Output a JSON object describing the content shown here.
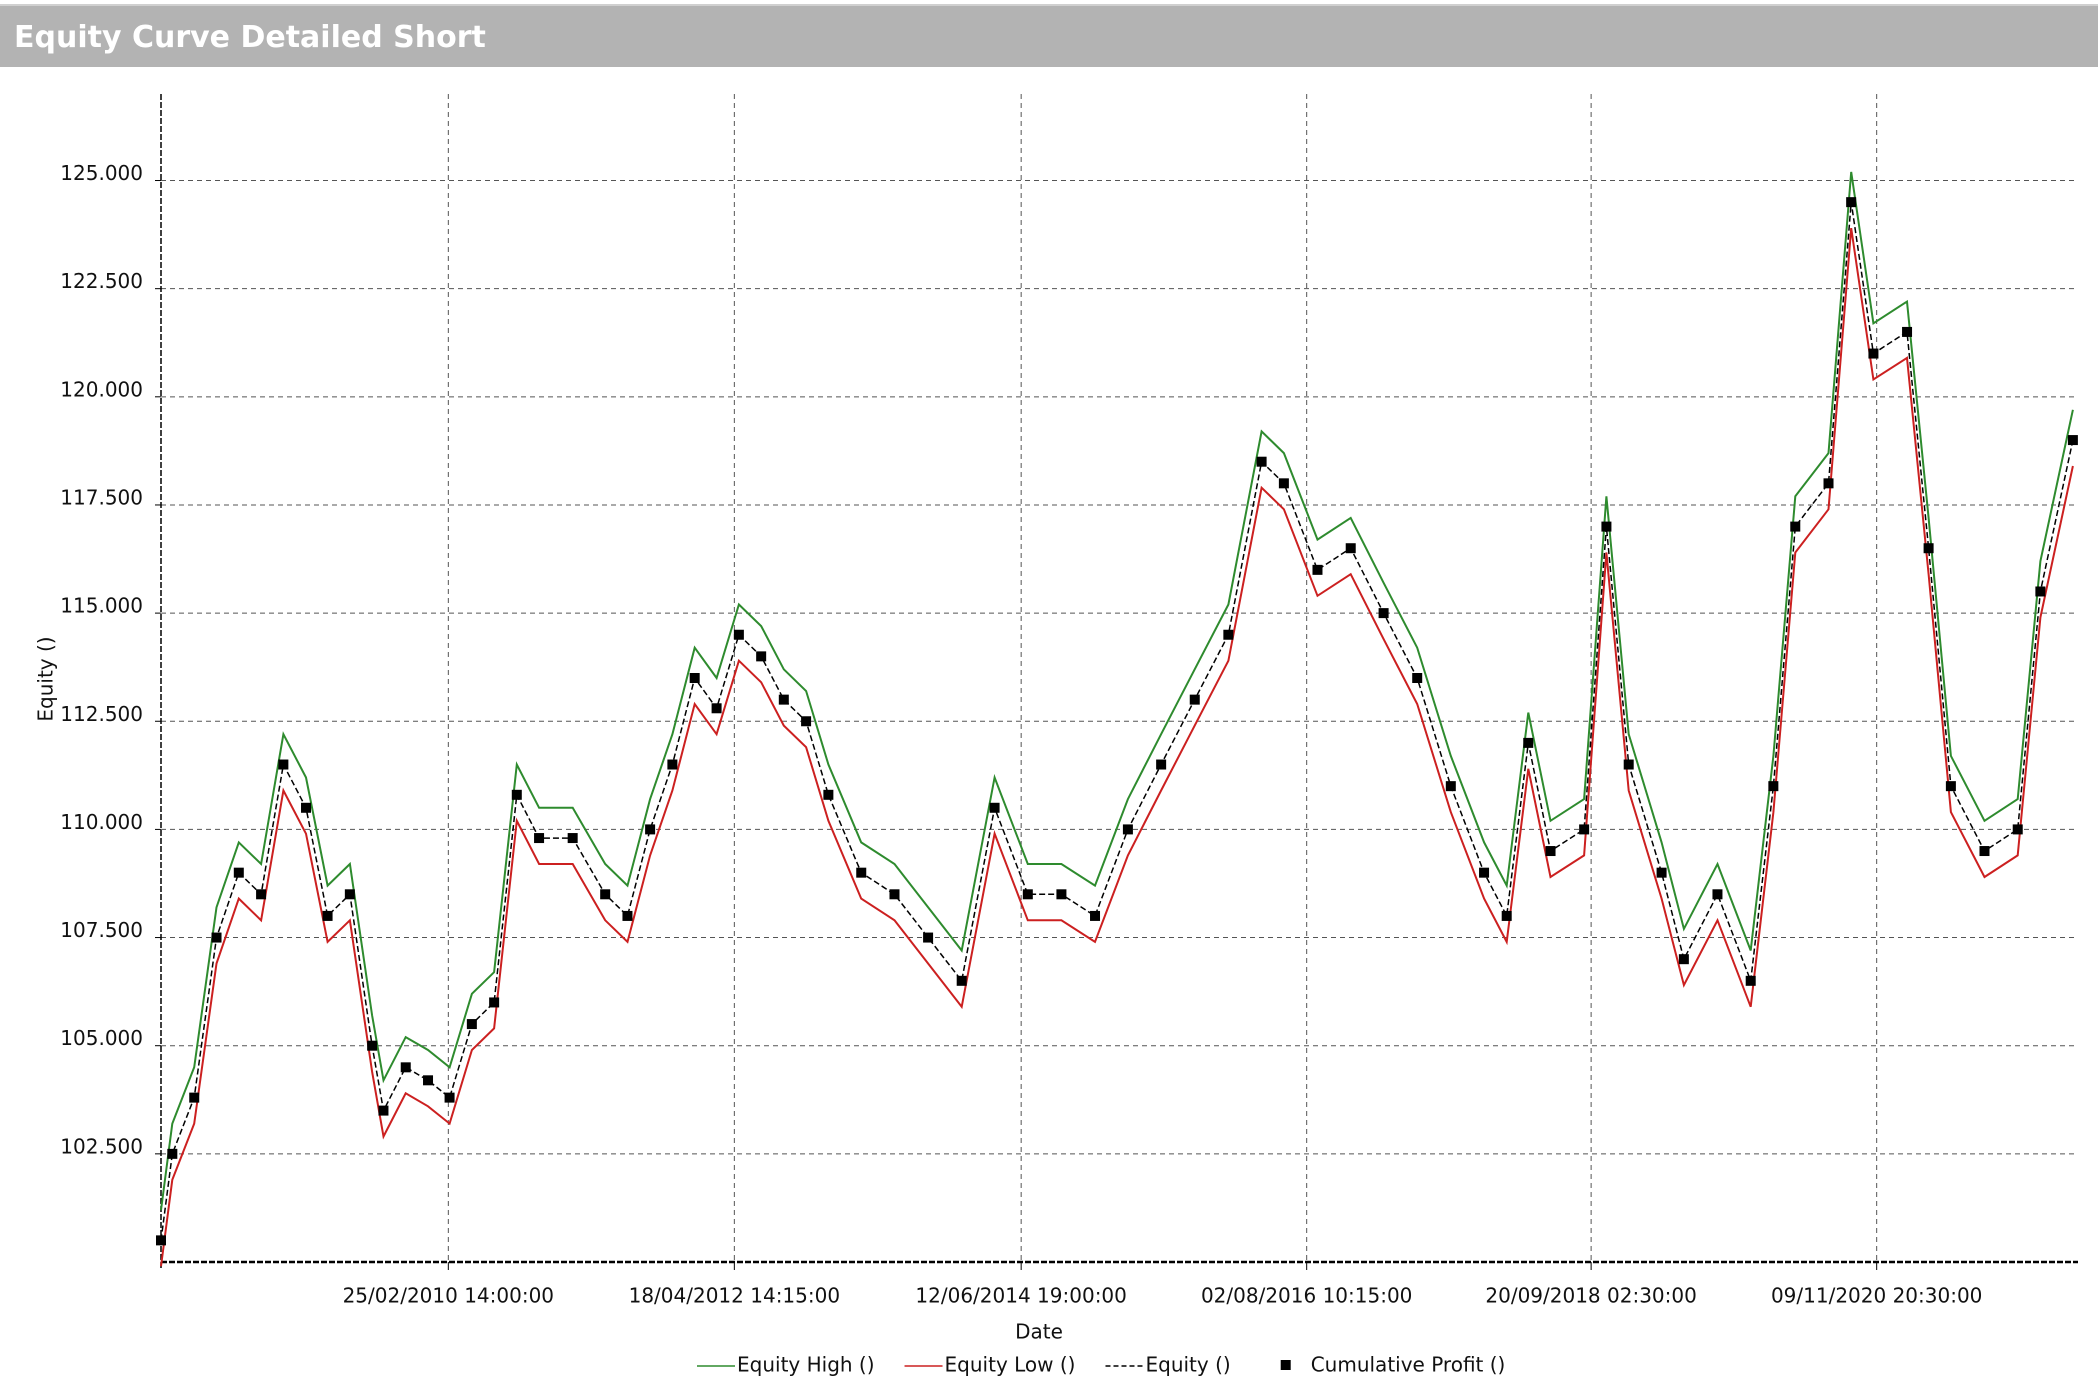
{
  "header": {
    "title": "Equity Curve Detailed Short"
  },
  "chart_data": {
    "type": "line",
    "x_label": "Date",
    "y_label": "Equity ()",
    "grid": true,
    "legend": "bottom",
    "xlim": [
      "2008-01-01",
      "2022-05-15"
    ],
    "xticks": [
      {
        "value": "2010-02-25T14:00:00",
        "label": "25/02/2010 14:00:00"
      },
      {
        "value": "2012-04-18T14:15:00",
        "label": "18/04/2012 14:15:00"
      },
      {
        "value": "2014-06-12T19:00:00",
        "label": "12/06/2014 19:00:00"
      },
      {
        "value": "2016-08-02T10:15:00",
        "label": "02/08/2016 10:15:00"
      },
      {
        "value": "2018-09-20T02:30:00",
        "label": "20/09/2018 02:30:00"
      },
      {
        "value": "2020-11-09T20:30:00",
        "label": "09/11/2020 20:30:00"
      }
    ],
    "ylim": [
      100000,
      127000
    ],
    "yticks": [
      {
        "value": 102500,
        "label": "102.500"
      },
      {
        "value": 105000,
        "label": "105.000"
      },
      {
        "value": 107500,
        "label": "107.500"
      },
      {
        "value": 110000,
        "label": "110.000"
      },
      {
        "value": 112500,
        "label": "112.500"
      },
      {
        "value": 115000,
        "label": "115.000"
      },
      {
        "value": 117500,
        "label": "117.500"
      },
      {
        "value": 120000,
        "label": "120.000"
      },
      {
        "value": 122500,
        "label": "122.500"
      },
      {
        "value": 125000,
        "label": "125.000"
      }
    ],
    "x": [
      "2008-01",
      "2008-02",
      "2008-04",
      "2008-06",
      "2008-08",
      "2008-10",
      "2008-12",
      "2009-02",
      "2009-04",
      "2009-06",
      "2009-08",
      "2009-09",
      "2009-11",
      "2010-01",
      "2010-03",
      "2010-05",
      "2010-07",
      "2010-09",
      "2010-11",
      "2011-02",
      "2011-05",
      "2011-07",
      "2011-09",
      "2011-11",
      "2012-01",
      "2012-03",
      "2012-05",
      "2012-07",
      "2012-09",
      "2012-11",
      "2013-01",
      "2013-04",
      "2013-07",
      "2013-10",
      "2014-01",
      "2014-04",
      "2014-07",
      "2014-10",
      "2015-01",
      "2015-04",
      "2015-07",
      "2015-10",
      "2016-01",
      "2016-04",
      "2016-06",
      "2016-09",
      "2016-12",
      "2017-03",
      "2017-06",
      "2017-09",
      "2017-12",
      "2018-02",
      "2018-04",
      "2018-06",
      "2018-09",
      "2018-11",
      "2019-01",
      "2019-04",
      "2019-06",
      "2019-09",
      "2019-12",
      "2020-02",
      "2020-04",
      "2020-07",
      "2020-09",
      "2020-11",
      "2021-02",
      "2021-04",
      "2021-06",
      "2021-09",
      "2021-12",
      "2022-02",
      "2022-05"
    ],
    "series": [
      {
        "name": "Equity High ()",
        "color": "#2e8b2e",
        "dash": false,
        "marker": "none",
        "values": [
          101200,
          103200,
          104500,
          108200,
          109700,
          109200,
          112200,
          111200,
          108700,
          109200,
          105700,
          104200,
          105200,
          104900,
          104500,
          106200,
          106700,
          111500,
          110500,
          110500,
          109200,
          108700,
          110700,
          112200,
          114200,
          113500,
          115200,
          114700,
          113700,
          113200,
          111500,
          109700,
          109200,
          108200,
          107200,
          111200,
          109200,
          109200,
          108700,
          110700,
          112200,
          113700,
          115200,
          119200,
          118700,
          116700,
          117200,
          115700,
          114200,
          111700,
          109700,
          108700,
          112700,
          110200,
          110700,
          117700,
          112200,
          109700,
          107700,
          109200,
          107200,
          111700,
          117700,
          118700,
          125200,
          121700,
          122200,
          117200,
          111700,
          110200,
          110700,
          116200,
          119700
        ]
      },
      {
        "name": "Equity Low ()",
        "color": "#cc2020",
        "dash": false,
        "marker": "none",
        "values": [
          99900,
          101900,
          103200,
          106900,
          108400,
          107900,
          110900,
          109900,
          107400,
          107900,
          104400,
          102900,
          103900,
          103600,
          103200,
          104900,
          105400,
          110200,
          109200,
          109200,
          107900,
          107400,
          109400,
          110900,
          112900,
          112200,
          113900,
          113400,
          112400,
          111900,
          110200,
          108400,
          107900,
          106900,
          105900,
          109900,
          107900,
          107900,
          107400,
          109400,
          110900,
          112400,
          113900,
          117900,
          117400,
          115400,
          115900,
          114400,
          112900,
          110400,
          108400,
          107400,
          111400,
          108900,
          109400,
          116400,
          110900,
          108400,
          106400,
          107900,
          105900,
          110400,
          116400,
          117400,
          123900,
          120400,
          120900,
          115900,
          110400,
          108900,
          109400,
          114900,
          118400
        ]
      },
      {
        "name": "Equity ()",
        "color": "#000000",
        "dash": true,
        "marker": "none",
        "values": [
          100500,
          102500,
          103800,
          107500,
          109000,
          108500,
          111500,
          110500,
          108000,
          108500,
          105000,
          103500,
          104500,
          104200,
          103800,
          105500,
          106000,
          110800,
          109800,
          109800,
          108500,
          108000,
          110000,
          111500,
          113500,
          112800,
          114500,
          114000,
          113000,
          112500,
          110800,
          109000,
          108500,
          107500,
          106500,
          110500,
          108500,
          108500,
          108000,
          110000,
          111500,
          113000,
          114500,
          118500,
          118000,
          116000,
          116500,
          115000,
          113500,
          111000,
          109000,
          108000,
          112000,
          109500,
          110000,
          117000,
          111500,
          109000,
          107000,
          108500,
          106500,
          111000,
          117000,
          118000,
          124500,
          121000,
          121500,
          116500,
          111000,
          109500,
          110000,
          115500,
          119000
        ]
      },
      {
        "name": "Cumulative Profit ()",
        "color": "#000000",
        "dash": false,
        "marker": "square",
        "values": [
          100500,
          102500,
          103800,
          107500,
          109000,
          108500,
          111500,
          110500,
          108000,
          108500,
          105000,
          103500,
          104500,
          104200,
          103800,
          105500,
          106000,
          110800,
          109800,
          109800,
          108500,
          108000,
          110000,
          111500,
          113500,
          112800,
          114500,
          114000,
          113000,
          112500,
          110800,
          109000,
          108500,
          107500,
          106500,
          110500,
          108500,
          108500,
          108000,
          110000,
          111500,
          113000,
          114500,
          118500,
          118000,
          116000,
          116500,
          115000,
          113500,
          111000,
          109000,
          108000,
          112000,
          109500,
          110000,
          117000,
          111500,
          109000,
          107000,
          108500,
          106500,
          111000,
          117000,
          118000,
          124500,
          121000,
          121500,
          116500,
          111000,
          109500,
          110000,
          115500,
          119000
        ]
      }
    ]
  }
}
